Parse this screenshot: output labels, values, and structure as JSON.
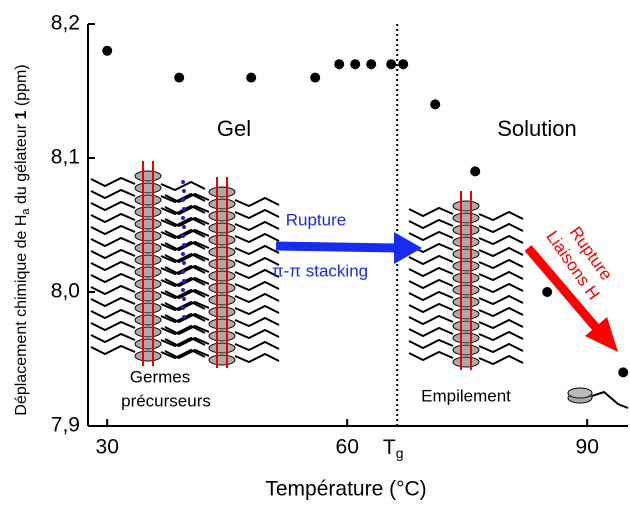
{
  "chart_data": {
    "type": "scatter",
    "x_label": "Température (°C)",
    "y_label_parts": [
      "Déplacement chimique de H",
      "a",
      " du gélateur ",
      "1",
      " (ppm)"
    ],
    "x": [
      30,
      39,
      48,
      56,
      59,
      61,
      63,
      65.5,
      67,
      71,
      76,
      85,
      94.5
    ],
    "series": [
      {
        "color": "#000000",
        "values": [
          8.18,
          8.16,
          8.16,
          8.16,
          8.17,
          8.17,
          8.17,
          8.17,
          8.17,
          8.14,
          8.09,
          8.0,
          7.94
        ]
      }
    ],
    "xlim": [
      27.6,
      95.1
    ],
    "ylim": [
      7.9,
      8.2
    ],
    "xticks": [
      30,
      60,
      90
    ],
    "yticks": [
      {
        "value": 7.9,
        "label": "7,9"
      },
      {
        "value": 8.0,
        "label": "8,0"
      },
      {
        "value": 8.1,
        "label": "8,1"
      },
      {
        "value": 8.2,
        "label": "8,2"
      }
    ],
    "tg_line": {
      "value": 66.25,
      "label_main": "T",
      "label_sub": "g"
    },
    "annotations": {
      "gel": "Gel",
      "solution": "Solution",
      "rupture": "Rupture",
      "stacking": "π-π stacking",
      "rupture_h_1": "Rupture",
      "rupture_h_2": "Liaisons H",
      "germes_1": "Germes",
      "germes_2": "précurseurs",
      "empilement": "Empilement"
    }
  }
}
